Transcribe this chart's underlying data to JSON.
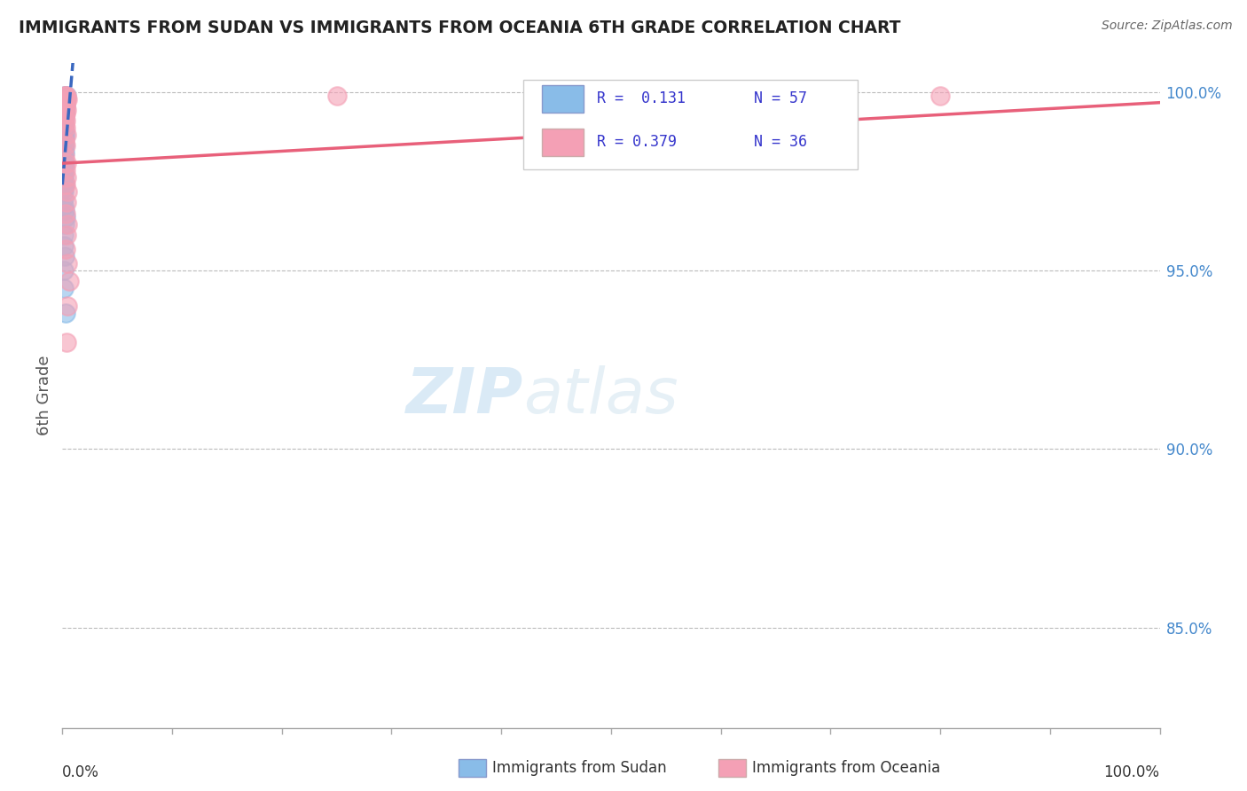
{
  "title": "IMMIGRANTS FROM SUDAN VS IMMIGRANTS FROM OCEANIA 6TH GRADE CORRELATION CHART",
  "source_text": "Source: ZipAtlas.com",
  "ylabel": "6th Grade",
  "x_min": 0.0,
  "x_max": 1.0,
  "y_min": 0.822,
  "y_max": 1.008,
  "ytick_values": [
    0.85,
    0.9,
    0.95,
    1.0
  ],
  "legend_r1": "R =  0.131",
  "legend_n1": "N = 57",
  "legend_r2": "R = 0.379",
  "legend_n2": "N = 36",
  "color_sudan": "#89BCE8",
  "color_oceania": "#F4A0B5",
  "color_sudan_line": "#3A68C0",
  "color_oceania_line": "#E8607A",
  "color_stats": "#3535CC",
  "watermark_zip": "ZIP",
  "watermark_atlas": "atlas",
  "sudan_x": [
    0.002,
    0.003,
    0.004,
    0.003,
    0.002,
    0.001,
    0.001,
    0.002,
    0.003,
    0.002,
    0.001,
    0.001,
    0.002,
    0.001,
    0.001,
    0.002,
    0.001,
    0.001,
    0.001,
    0.001,
    0.001,
    0.002,
    0.001,
    0.002,
    0.001,
    0.001,
    0.002,
    0.001,
    0.001,
    0.002,
    0.001,
    0.001,
    0.001,
    0.002,
    0.001,
    0.001,
    0.002,
    0.001,
    0.001,
    0.001,
    0.001,
    0.001,
    0.001,
    0.002,
    0.001,
    0.001,
    0.001,
    0.001,
    0.002,
    0.003,
    0.002,
    0.001,
    0.001,
    0.002,
    0.001,
    0.001,
    0.003
  ],
  "sudan_y": [
    0.999,
    0.999,
    0.999,
    0.998,
    0.997,
    0.997,
    0.996,
    0.996,
    0.996,
    0.995,
    0.995,
    0.994,
    0.994,
    0.993,
    0.993,
    0.993,
    0.992,
    0.992,
    0.991,
    0.99,
    0.99,
    0.989,
    0.989,
    0.988,
    0.987,
    0.987,
    0.987,
    0.986,
    0.986,
    0.985,
    0.985,
    0.984,
    0.983,
    0.983,
    0.982,
    0.981,
    0.98,
    0.98,
    0.979,
    0.978,
    0.977,
    0.976,
    0.975,
    0.974,
    0.973,
    0.972,
    0.97,
    0.968,
    0.967,
    0.965,
    0.963,
    0.96,
    0.957,
    0.954,
    0.95,
    0.945,
    0.938
  ],
  "oceania_x": [
    0.002,
    0.003,
    0.004,
    0.003,
    0.004,
    0.005,
    0.003,
    0.002,
    0.003,
    0.004,
    0.003,
    0.002,
    0.003,
    0.002,
    0.003,
    0.004,
    0.002,
    0.003,
    0.002,
    0.004,
    0.003,
    0.004,
    0.003,
    0.005,
    0.004,
    0.003,
    0.005,
    0.004,
    0.003,
    0.005,
    0.006,
    0.005,
    0.004,
    0.25,
    0.55,
    0.8
  ],
  "oceania_y": [
    0.999,
    0.999,
    0.999,
    0.998,
    0.998,
    0.998,
    0.997,
    0.996,
    0.996,
    0.995,
    0.994,
    0.993,
    0.992,
    0.991,
    0.99,
    0.988,
    0.986,
    0.985,
    0.982,
    0.98,
    0.978,
    0.976,
    0.974,
    0.972,
    0.969,
    0.966,
    0.963,
    0.96,
    0.956,
    0.952,
    0.947,
    0.94,
    0.93,
    0.999,
    0.999,
    0.999
  ],
  "sudan_trendline_x": [
    0.0,
    0.007
  ],
  "sudan_trendline_y": [
    0.974,
    0.999
  ],
  "oceania_trendline_x": [
    0.0,
    1.0
  ],
  "oceania_trendline_y": [
    0.98,
    0.997
  ]
}
